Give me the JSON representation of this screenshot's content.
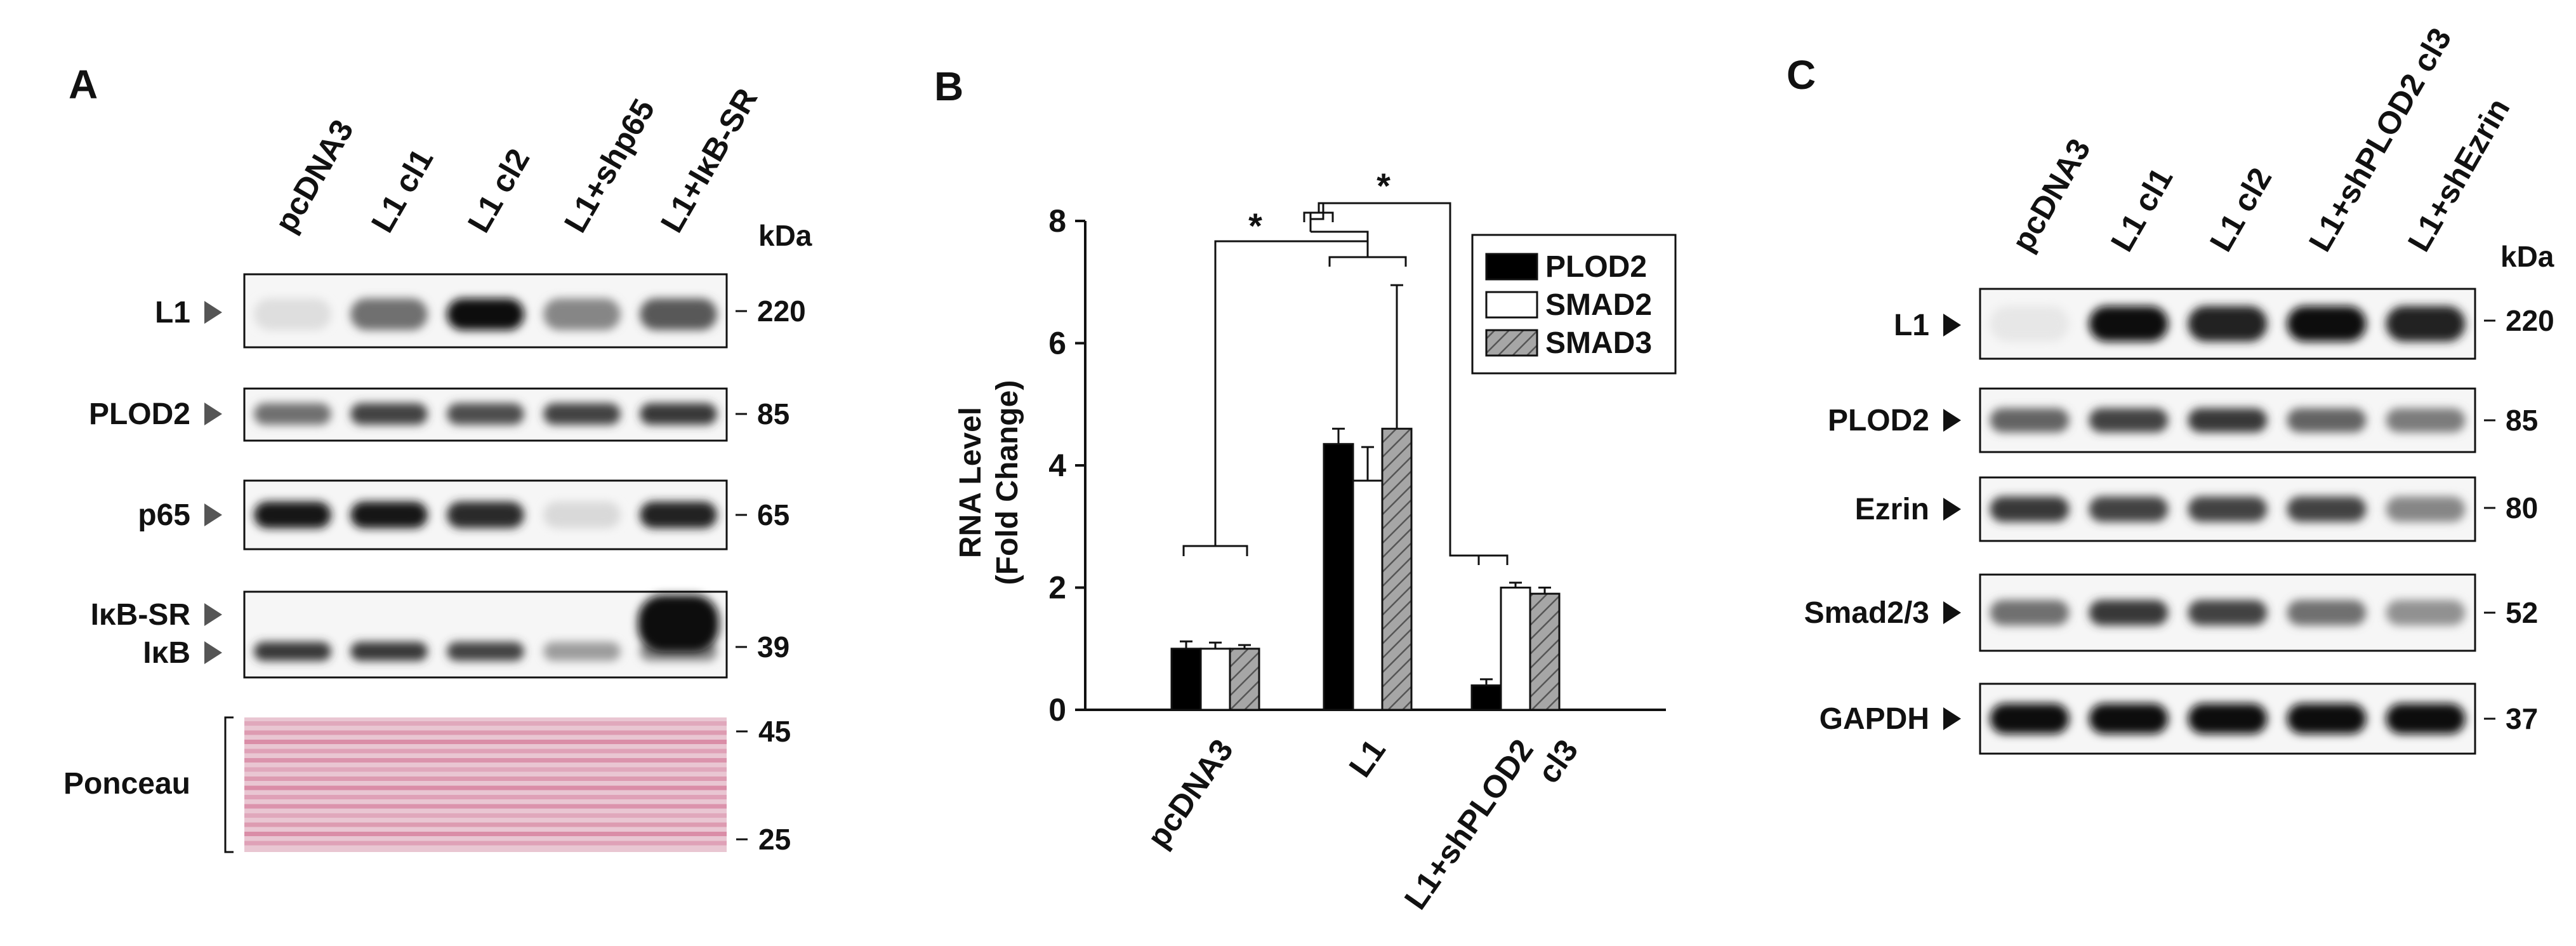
{
  "panels": {
    "a": {
      "letter": "A",
      "lanes": [
        "pcDNA3",
        "L1 cl1",
        "L1 cl2",
        "L1+shp65",
        "L1+IκB-SR"
      ],
      "kda_label": "kDa",
      "blots": [
        {
          "labels": [
            "L1"
          ],
          "markers": [
            "220"
          ],
          "bands": [
            0.06,
            0.55,
            1.0,
            0.45,
            0.65
          ]
        },
        {
          "labels": [
            "PLOD2"
          ],
          "markers": [
            "85"
          ],
          "bands": [
            0.55,
            0.75,
            0.7,
            0.75,
            0.8
          ]
        },
        {
          "labels": [
            "p65"
          ],
          "markers": [
            "65"
          ],
          "bands": [
            0.95,
            0.95,
            0.85,
            0.08,
            0.9
          ]
        },
        {
          "labels": [
            "IκB-SR",
            "IκB"
          ],
          "markers": [
            "39"
          ],
          "bands": [
            0.8,
            0.8,
            0.75,
            0.35,
            0.45
          ],
          "extra_band": 1.0
        }
      ],
      "ponceau": {
        "label": "Ponceau",
        "markers": [
          "45",
          "25"
        ],
        "color": "#c9517a"
      }
    },
    "b": {
      "letter": "B"
    },
    "c": {
      "letter": "C",
      "lanes": [
        "pcDNA3",
        "L1 cl1",
        "L1 cl2",
        "L1+shPLOD2 cl3",
        "L1+shEzrin"
      ],
      "kda_label": "kDa",
      "blots": [
        {
          "labels": [
            "L1"
          ],
          "markers": [
            "220"
          ],
          "bands": [
            0.02,
            1.0,
            0.9,
            1.0,
            0.9
          ]
        },
        {
          "labels": [
            "PLOD2"
          ],
          "markers": [
            "85"
          ],
          "bands": [
            0.6,
            0.75,
            0.8,
            0.6,
            0.5
          ]
        },
        {
          "labels": [
            "Ezrin"
          ],
          "markers": [
            "80"
          ],
          "bands": [
            0.8,
            0.75,
            0.75,
            0.75,
            0.45
          ]
        },
        {
          "labels": [
            "Smad2/3"
          ],
          "markers": [
            "52"
          ],
          "bands": [
            0.55,
            0.8,
            0.75,
            0.55,
            0.4
          ]
        },
        {
          "labels": [
            "GAPDH"
          ],
          "markers": [
            "37"
          ],
          "bands": [
            1.0,
            1.0,
            1.0,
            1.0,
            1.0
          ]
        }
      ]
    }
  },
  "chart_data": {
    "type": "bar",
    "title": "",
    "xlabel": "",
    "ylabel": "RNA Level (Fold Change)",
    "ylabel_lines": [
      "RNA Level",
      "(Fold Change)"
    ],
    "ylim": [
      0,
      8
    ],
    "yticks": [
      0,
      2,
      4,
      6,
      8
    ],
    "categories": [
      "pcDNA3",
      "L1",
      "L1+shPLOD2 cl3"
    ],
    "category_lines": [
      [
        "pcDNA3"
      ],
      [
        "L1"
      ],
      [
        "L1+shPLOD2",
        "cl3"
      ]
    ],
    "series": [
      {
        "name": "PLOD2",
        "values": [
          1.0,
          4.35,
          0.4
        ],
        "errors": [
          0.12,
          0.25,
          0.1
        ],
        "color": "#000000"
      },
      {
        "name": "SMAD2",
        "values": [
          1.0,
          3.75,
          2.0
        ],
        "errors": [
          0.1,
          0.55,
          0.08
        ],
        "color": "#ffffff"
      },
      {
        "name": "SMAD3",
        "values": [
          1.0,
          4.6,
          1.9
        ],
        "errors": [
          0.06,
          2.35,
          0.1
        ],
        "color": "#a6a6a6",
        "hatch": true
      }
    ],
    "significance": [
      "*",
      "*"
    ],
    "legend_position": "top-right",
    "grid": false
  }
}
